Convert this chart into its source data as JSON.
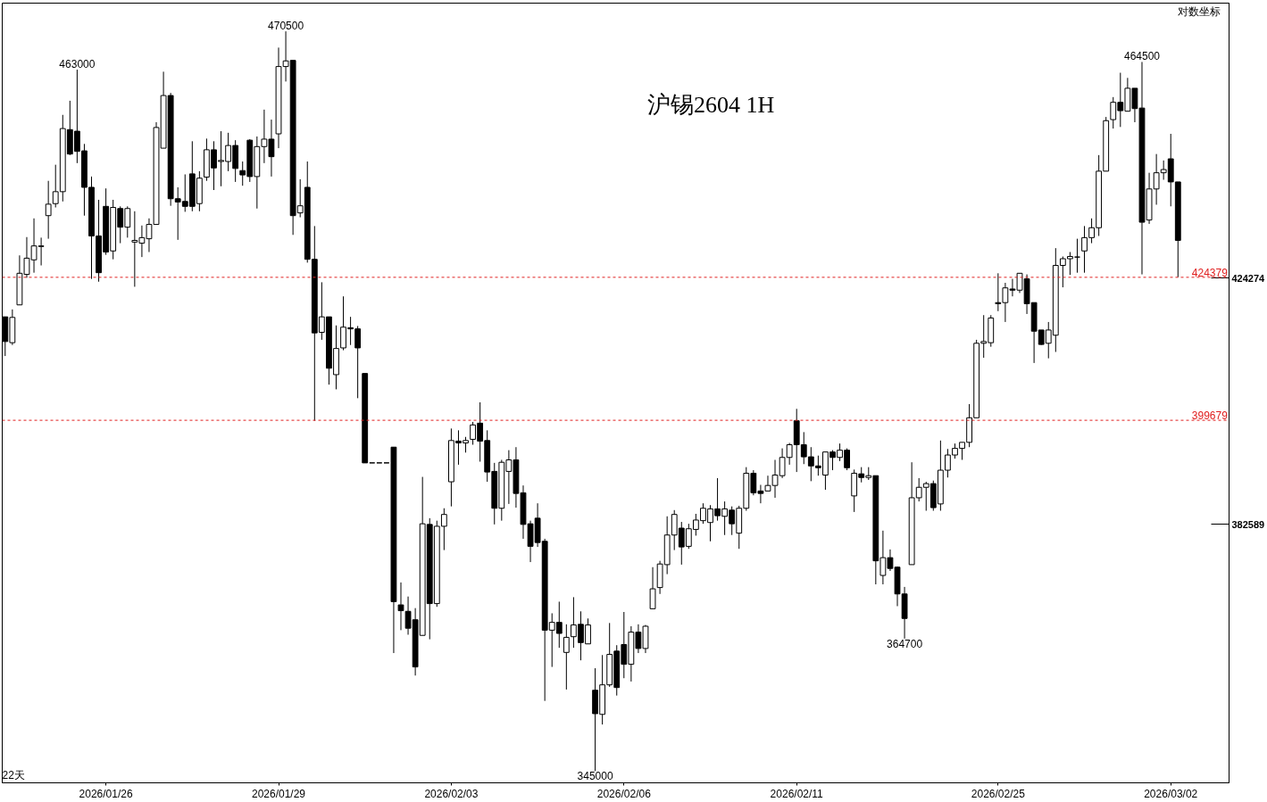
{
  "chart_data": {
    "type": "candlestick",
    "title": "沪锡2604  1H",
    "log": true,
    "ylim": [
      343300,
      476100
    ],
    "yticks": [
      424274,
      382589
    ],
    "categories": [
      null,
      null,
      null,
      null,
      null,
      null,
      null,
      null,
      null,
      null,
      null,
      null,
      null,
      null,
      "2026/01/26",
      null,
      null,
      null,
      null,
      null,
      null,
      null,
      null,
      null,
      null,
      null,
      null,
      null,
      null,
      null,
      null,
      null,
      null,
      null,
      null,
      null,
      null,
      null,
      "2026/01/29",
      null,
      null,
      null,
      null,
      null,
      null,
      null,
      null,
      null,
      null,
      null,
      null,
      null,
      null,
      null,
      null,
      null,
      null,
      null,
      null,
      null,
      null,
      null,
      "2026/02/03",
      null,
      null,
      null,
      null,
      null,
      null,
      null,
      null,
      null,
      null,
      null,
      null,
      null,
      null,
      null,
      null,
      null,
      null,
      null,
      null,
      null,
      null,
      null,
      "2026/02/06",
      null,
      null,
      null,
      null,
      null,
      null,
      null,
      null,
      null,
      null,
      null,
      null,
      null,
      null,
      null,
      null,
      null,
      null,
      null,
      null,
      null,
      null,
      null,
      "2026/02/11",
      null,
      null,
      null,
      null,
      null,
      null,
      null,
      null,
      null,
      null,
      null,
      null,
      null,
      null,
      null,
      null,
      null,
      null,
      null,
      null,
      null,
      null,
      null,
      null,
      null,
      null,
      null,
      "2026/02/25",
      null,
      null,
      null,
      null,
      null,
      null,
      null,
      null,
      null,
      null,
      null,
      null,
      null,
      null,
      null,
      null,
      null,
      null,
      null,
      null,
      null,
      null,
      null,
      "2026/03/02",
      null
    ],
    "ohlc": [
      [
        417400,
        417400,
        410600,
        413100
      ],
      [
        412900,
        418700,
        412500,
        417300
      ],
      [
        419500,
        428300,
        419500,
        425100
      ],
      [
        424900,
        431600,
        424300,
        427800
      ],
      [
        427500,
        435000,
        425200,
        430000
      ],
      [
        429900,
        431500,
        426500,
        430000
      ],
      [
        435500,
        441900,
        431300,
        437600
      ],
      [
        437700,
        444900,
        437000,
        439900
      ],
      [
        439900,
        454300,
        438100,
        451700
      ],
      [
        451500,
        457000,
        446700,
        446900
      ],
      [
        451200,
        463000,
        445200,
        447400
      ],
      [
        447500,
        448800,
        435500,
        440700
      ],
      [
        440700,
        442700,
        424100,
        431800
      ],
      [
        431800,
        438400,
        423600,
        425200
      ],
      [
        437200,
        440500,
        428400,
        428900
      ],
      [
        429100,
        438400,
        427600,
        437000
      ],
      [
        436800,
        437200,
        430500,
        433400
      ],
      [
        433400,
        437200,
        431500,
        436800
      ],
      [
        430700,
        436300,
        422700,
        431000
      ],
      [
        430500,
        433700,
        428000,
        431500
      ],
      [
        431300,
        435000,
        428900,
        433900
      ],
      [
        433900,
        452900,
        433900,
        451900
      ],
      [
        448000,
        462600,
        448000,
        458000
      ],
      [
        458000,
        458500,
        437300,
        438600
      ],
      [
        438600,
        440700,
        431100,
        438000
      ],
      [
        438100,
        443100,
        436200,
        437200
      ],
      [
        443200,
        449300,
        436300,
        437200
      ],
      [
        437700,
        443700,
        436300,
        442400
      ],
      [
        442600,
        449800,
        441900,
        447700
      ],
      [
        447700,
        449300,
        440200,
        444300
      ],
      [
        445500,
        451200,
        440900,
        445700
      ],
      [
        445500,
        450900,
        443700,
        448500
      ],
      [
        448500,
        449500,
        441700,
        444200
      ],
      [
        443800,
        445500,
        441000,
        443000
      ],
      [
        449500,
        449700,
        441700,
        442700
      ],
      [
        442700,
        450200,
        436800,
        448300
      ],
      [
        448300,
        455300,
        445200,
        449700
      ],
      [
        449700,
        453400,
        442700,
        446400
      ],
      [
        450700,
        467300,
        448000,
        463600
      ],
      [
        463600,
        470500,
        460700,
        464700
      ],
      [
        464800,
        464800,
        432000,
        435500
      ],
      [
        436000,
        442200,
        435200,
        437300
      ],
      [
        440700,
        445500,
        427000,
        427600
      ],
      [
        427600,
        433600,
        399600,
        414600
      ],
      [
        414700,
        423500,
        413400,
        417400
      ],
      [
        417400,
        417400,
        405700,
        408500
      ],
      [
        407400,
        415900,
        404900,
        411900
      ],
      [
        412000,
        421000,
        411600,
        415600
      ],
      [
        415500,
        417400,
        412500,
        415300
      ],
      [
        415300,
        415800,
        403400,
        412000
      ],
      [
        407600,
        407600,
        392600,
        392600
      ],
      [
        392600,
        392600,
        392600,
        392600
      ],
      [
        392600,
        392600,
        392600,
        392600
      ],
      [
        392600,
        392600,
        392600,
        392600
      ],
      [
        395200,
        395200,
        362500,
        370400
      ],
      [
        369900,
        373400,
        366000,
        369000
      ],
      [
        368900,
        371200,
        365300,
        366300
      ],
      [
        367600,
        369400,
        359100,
        360400
      ],
      [
        365200,
        390300,
        365200,
        382700
      ],
      [
        382600,
        383600,
        364600,
        370100
      ],
      [
        370100,
        383200,
        369600,
        382300
      ],
      [
        382300,
        385200,
        378500,
        384200
      ],
      [
        389500,
        398300,
        385500,
        396300
      ],
      [
        396200,
        398000,
        392300,
        395900
      ],
      [
        395900,
        396900,
        394300,
        396300
      ],
      [
        396500,
        399400,
        395600,
        398900
      ],
      [
        399200,
        402700,
        392800,
        396200
      ],
      [
        396300,
        398000,
        389500,
        391100
      ],
      [
        391200,
        392600,
        382600,
        385200
      ],
      [
        385200,
        393100,
        383200,
        392700
      ],
      [
        391200,
        394700,
        385900,
        393100
      ],
      [
        393100,
        395200,
        385300,
        387600
      ],
      [
        387700,
        388900,
        380300,
        382600
      ],
      [
        382700,
        383200,
        376600,
        379100
      ],
      [
        383600,
        386000,
        379000,
        379700
      ],
      [
        379900,
        380300,
        355300,
        366000
      ],
      [
        366000,
        368600,
        360400,
        367200
      ],
      [
        367200,
        370400,
        363300,
        365500
      ],
      [
        362600,
        366900,
        357000,
        364900
      ],
      [
        365000,
        371100,
        363300,
        366800
      ],
      [
        366900,
        368900,
        361400,
        364100
      ],
      [
        363900,
        367800,
        363900,
        366800
      ],
      [
        356900,
        360200,
        345000,
        353400
      ],
      [
        353300,
        362200,
        351800,
        357700
      ],
      [
        357700,
        367100,
        357400,
        362300
      ],
      [
        362800,
        363700,
        356100,
        357300
      ],
      [
        363800,
        368800,
        358700,
        360800
      ],
      [
        360800,
        366600,
        358200,
        365700
      ],
      [
        365700,
        366900,
        362500,
        363200
      ],
      [
        363200,
        366800,
        362500,
        366600
      ],
      [
        369300,
        375800,
        369300,
        372400
      ],
      [
        372600,
        376800,
        371600,
        376300
      ],
      [
        376200,
        383900,
        374700,
        380900
      ],
      [
        380900,
        384900,
        378500,
        384200
      ],
      [
        382000,
        383000,
        376200,
        379000
      ],
      [
        379100,
        382700,
        378700,
        381900
      ],
      [
        381800,
        384300,
        380800,
        383300
      ],
      [
        383200,
        386000,
        382700,
        385200
      ],
      [
        382900,
        385700,
        379900,
        385100
      ],
      [
        385100,
        390100,
        383200,
        384000
      ],
      [
        383900,
        386300,
        380900,
        385100
      ],
      [
        384900,
        385500,
        380900,
        382700
      ],
      [
        381200,
        385600,
        378700,
        385200
      ],
      [
        385200,
        391900,
        384800,
        390900
      ],
      [
        390900,
        391400,
        387300,
        387700
      ],
      [
        388000,
        389000,
        386000,
        387600
      ],
      [
        388000,
        390500,
        388000,
        388900
      ],
      [
        388900,
        393100,
        386900,
        390600
      ],
      [
        390500,
        395000,
        390100,
        393500
      ],
      [
        393500,
        395900,
        392300,
        395600
      ],
      [
        399600,
        401600,
        391100,
        395600
      ],
      [
        395600,
        397700,
        392400,
        393600
      ],
      [
        393600,
        395200,
        389600,
        392100
      ],
      [
        392100,
        393800,
        390500,
        391800
      ],
      [
        390600,
        394400,
        388200,
        394400
      ],
      [
        394400,
        394700,
        391400,
        393500
      ],
      [
        393500,
        395800,
        392900,
        394700
      ],
      [
        394700,
        395000,
        391400,
        391800
      ],
      [
        387200,
        391500,
        384600,
        390900
      ],
      [
        390800,
        391900,
        389400,
        390200
      ],
      [
        390200,
        391900,
        389800,
        390500
      ],
      [
        390500,
        390500,
        373100,
        376800
      ],
      [
        374500,
        381600,
        373100,
        377300
      ],
      [
        377300,
        378600,
        375200,
        375600
      ],
      [
        375800,
        375900,
        369700,
        371600
      ],
      [
        371600,
        372700,
        364700,
        367800
      ],
      [
        376200,
        392700,
        376200,
        386900
      ],
      [
        386900,
        390100,
        386300,
        388600
      ],
      [
        388600,
        389500,
        384800,
        389200
      ],
      [
        389200,
        389700,
        384800,
        385300
      ],
      [
        385900,
        396300,
        384800,
        391400
      ],
      [
        391400,
        394900,
        390200,
        393900
      ],
      [
        393900,
        395800,
        393300,
        395000
      ],
      [
        395000,
        396000,
        393100,
        396000
      ],
      [
        396000,
        402400,
        395200,
        400100
      ],
      [
        400100,
        413400,
        400100,
        412800
      ],
      [
        412800,
        417700,
        410300,
        413100
      ],
      [
        412900,
        417700,
        412200,
        417200
      ],
      [
        419900,
        425100,
        418400,
        419700
      ],
      [
        419900,
        423400,
        416500,
        422500
      ],
      [
        422300,
        424100,
        421000,
        422100
      ],
      [
        422100,
        425100,
        421600,
        425100
      ],
      [
        424100,
        424900,
        417900,
        419700
      ],
      [
        419900,
        419900,
        409400,
        414900
      ],
      [
        415100,
        415100,
        412500,
        412600
      ],
      [
        412800,
        416500,
        410200,
        415100
      ],
      [
        414200,
        429600,
        411300,
        426500
      ],
      [
        426500,
        428100,
        422600,
        427700
      ],
      [
        427700,
        428900,
        424800,
        428100
      ],
      [
        428000,
        431300,
        425200,
        428000
      ],
      [
        429100,
        433600,
        425200,
        431500
      ],
      [
        431500,
        435000,
        430500,
        433300
      ],
      [
        433300,
        446700,
        431800,
        443700
      ],
      [
        443700,
        453900,
        443700,
        453200
      ],
      [
        453400,
        457700,
        451700,
        456700
      ],
      [
        456700,
        462400,
        452000,
        455100
      ],
      [
        455000,
        461400,
        455000,
        459400
      ],
      [
        459400,
        459400,
        452900,
        455500
      ],
      [
        455600,
        464500,
        424900,
        434300
      ],
      [
        434700,
        443400,
        434000,
        440400
      ],
      [
        440400,
        446900,
        437500,
        443400
      ],
      [
        443400,
        445700,
        442100,
        444000
      ],
      [
        446000,
        450700,
        437200,
        441700
      ],
      [
        441700,
        441700,
        424400,
        431000
      ]
    ],
    "ref_lines": [
      {
        "axis": "y",
        "value": 424379,
        "label": "424379",
        "color": "#e02020",
        "line_style": "dashed"
      },
      {
        "axis": "y",
        "value": 399679,
        "label": "399679",
        "color": "#e02020",
        "line_style": "dashed"
      }
    ],
    "annotations": [
      "463000",
      "470500",
      "464500",
      "345000",
      "364700",
      "对数坐标",
      "22天"
    ]
  }
}
